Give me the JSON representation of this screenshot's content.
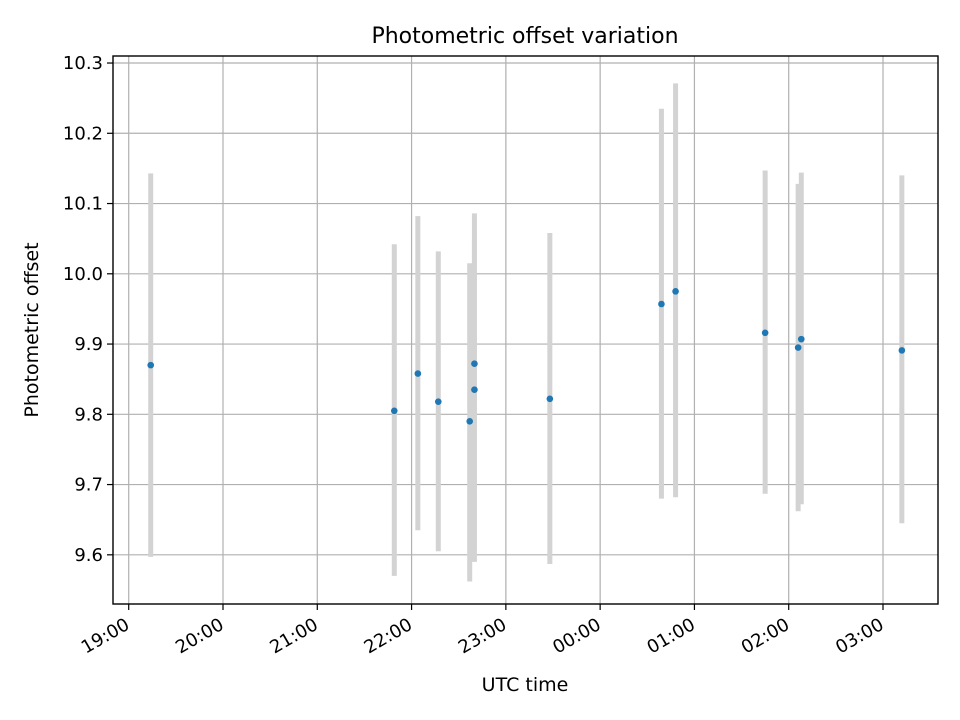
{
  "chart_data": {
    "type": "scatter",
    "title": "Photometric offset variation",
    "xlabel": "UTC time",
    "ylabel": "Photometric offset",
    "x_axis_type": "time",
    "xlim": [
      "18:50",
      "27:35"
    ],
    "ylim": [
      9.53,
      10.31
    ],
    "xticks": [
      {
        "value": "19:00",
        "label": "19:00"
      },
      {
        "value": "20:00",
        "label": "20:00"
      },
      {
        "value": "21:00",
        "label": "21:00"
      },
      {
        "value": "22:00",
        "label": "22:00"
      },
      {
        "value": "23:00",
        "label": "23:00"
      },
      {
        "value": "24:00",
        "label": "00:00"
      },
      {
        "value": "25:00",
        "label": "01:00"
      },
      {
        "value": "26:00",
        "label": "02:00"
      },
      {
        "value": "27:00",
        "label": "03:00"
      }
    ],
    "yticks": [
      9.6,
      9.7,
      9.8,
      9.9,
      10.0,
      10.1,
      10.2,
      10.3
    ],
    "ytick_labels": [
      "9.6",
      "9.7",
      "9.8",
      "9.9",
      "10.0",
      "10.1",
      "10.2",
      "10.3"
    ],
    "grid": true,
    "marker_color": "#1f77b4",
    "errorbar_color": "#d3d3d3",
    "points": [
      {
        "time": "19:14",
        "y": 9.87,
        "ylow": 9.597,
        "yhigh": 10.143
      },
      {
        "time": "21:49",
        "y": 9.805,
        "ylow": 9.57,
        "yhigh": 10.042
      },
      {
        "time": "22:04",
        "y": 9.858,
        "ylow": 9.635,
        "yhigh": 10.082
      },
      {
        "time": "22:17",
        "y": 9.818,
        "ylow": 9.605,
        "yhigh": 10.032
      },
      {
        "time": "22:37",
        "y": 9.79,
        "ylow": 9.562,
        "yhigh": 10.015
      },
      {
        "time": "22:40",
        "y": 9.835,
        "ylow": 9.59,
        "yhigh": 10.086
      },
      {
        "time": "22:40",
        "y": 9.872,
        "ylow": 9.61,
        "yhigh": 10.05
      },
      {
        "time": "23:28",
        "y": 9.822,
        "ylow": 9.587,
        "yhigh": 10.058
      },
      {
        "time": "00:39",
        "y": 9.957,
        "ylow": 9.68,
        "yhigh": 10.235
      },
      {
        "time": "00:48",
        "y": 9.975,
        "ylow": 9.682,
        "yhigh": 10.271
      },
      {
        "time": "01:45",
        "y": 9.916,
        "ylow": 9.687,
        "yhigh": 10.147
      },
      {
        "time": "02:06",
        "y": 9.895,
        "ylow": 9.662,
        "yhigh": 10.128
      },
      {
        "time": "02:08",
        "y": 9.907,
        "ylow": 9.672,
        "yhigh": 10.144
      },
      {
        "time": "03:12",
        "y": 9.891,
        "ylow": 9.645,
        "yhigh": 10.14
      }
    ]
  }
}
